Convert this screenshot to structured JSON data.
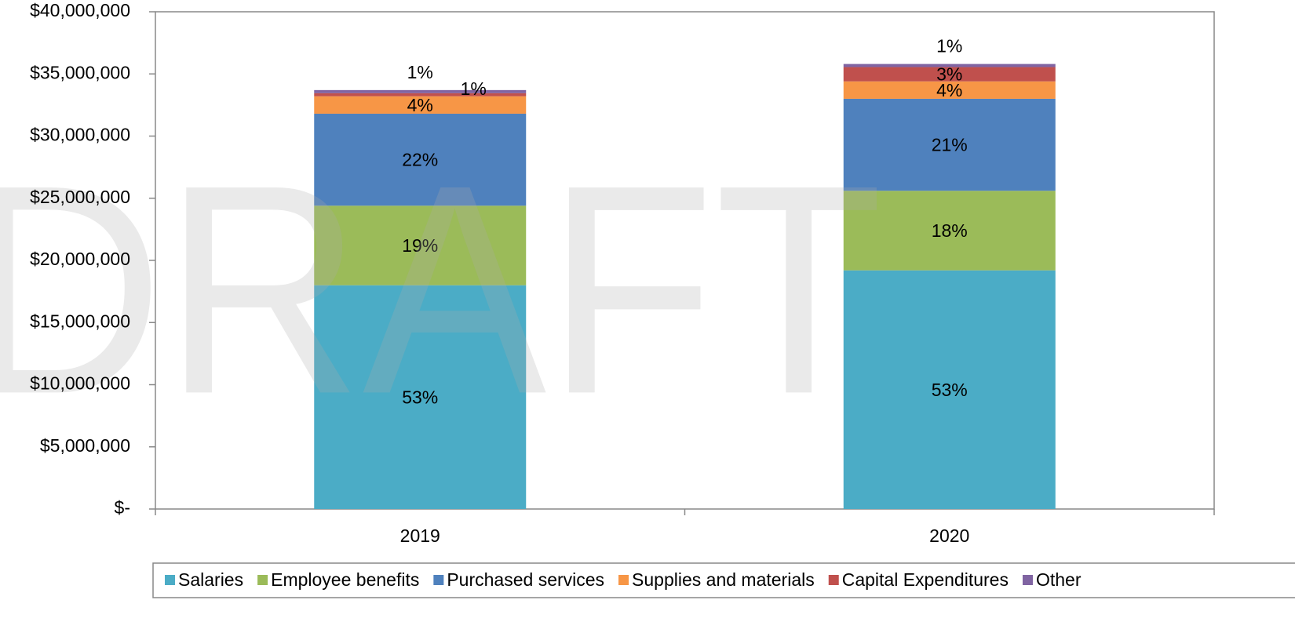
{
  "chart_data": {
    "type": "stacked_bar",
    "watermark": "DRAFT",
    "categories": [
      "2019",
      "2020"
    ],
    "series": [
      {
        "name": "Salaries",
        "color": "#4bacc6",
        "values": [
          18000000,
          19200000
        ],
        "value_labels": [
          "53%",
          "53%"
        ]
      },
      {
        "name": "Employee benefits",
        "color": "#9bbb59",
        "values": [
          6400000,
          6400000
        ],
        "value_labels": [
          "19%",
          "18%"
        ]
      },
      {
        "name": "Purchased services",
        "color": "#4f81bd",
        "values": [
          7400000,
          7400000
        ],
        "value_labels": [
          "22%",
          "21%"
        ]
      },
      {
        "name": "Supplies and materials",
        "color": "#f79646",
        "values": [
          1400000,
          1400000
        ],
        "value_labels": [
          "4%",
          "4%"
        ]
      },
      {
        "name": "Capital Expenditures",
        "color": "#c0504d",
        "values": [
          250000,
          1150000
        ],
        "value_labels": [
          "1%",
          "3%"
        ]
      },
      {
        "name": "Other",
        "color": "#8064a2",
        "values": [
          250000,
          250000
        ],
        "value_labels": [
          "1%",
          "1%"
        ]
      }
    ],
    "ylim": [
      0,
      40000000
    ],
    "yticks": [
      {
        "value": 0,
        "label": "$-"
      },
      {
        "value": 5000000,
        "label": "$5,000,000"
      },
      {
        "value": 10000000,
        "label": "$10,000,000"
      },
      {
        "value": 15000000,
        "label": "$15,000,000"
      },
      {
        "value": 20000000,
        "label": "$20,000,000"
      },
      {
        "value": 25000000,
        "label": "$25,000,000"
      },
      {
        "value": 30000000,
        "label": "$30,000,000"
      },
      {
        "value": 35000000,
        "label": "$35,000,000"
      },
      {
        "value": 40000000,
        "label": "$40,000,000"
      }
    ],
    "legend": "bottom"
  }
}
